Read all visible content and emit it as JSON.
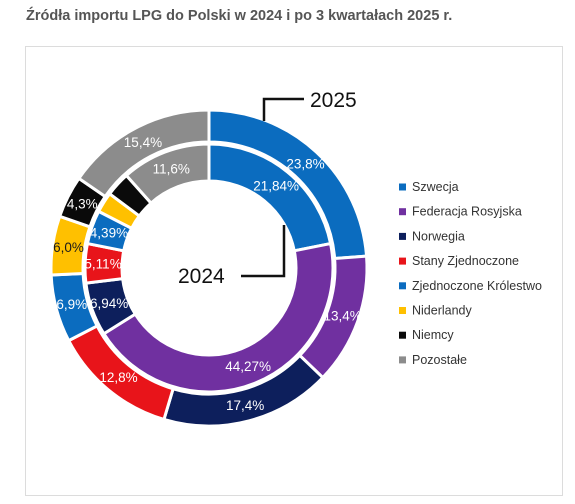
{
  "title": "Źródła importu LPG do Polski w 2024 i po 3 kwartałach 2025 r.",
  "chart_data": {
    "type": "pie",
    "subtype": "double-donut",
    "legend_position": "right",
    "categories": [
      "Szwecja",
      "Federacja Rosyjska",
      "Norwegia",
      "Stany Zjednoczone",
      "Zjednoczone Królestwo",
      "Niderlandy",
      "Niemcy",
      "Pozostałe"
    ],
    "colors": [
      "#0b6cbf",
      "#7030a0",
      "#0d1f5c",
      "#e8141a",
      "#0b6cbf",
      "#ffc000",
      "#0a0a0a",
      "#8c8c8c"
    ],
    "series": [
      {
        "name": "2025",
        "ring": "outer",
        "values": [
          23.8,
          13.4,
          17.4,
          12.8,
          6.9,
          6.0,
          4.3,
          15.4
        ],
        "labels": [
          "23,8%",
          "13,4%",
          "17,4%",
          "12,8%",
          "6,9%",
          "6,0%",
          "4,3%",
          "15,4%"
        ]
      },
      {
        "name": "2024",
        "ring": "inner",
        "values": [
          21.84,
          44.27,
          6.94,
          5.11,
          4.39,
          2.66,
          3.19,
          11.6
        ],
        "labels": [
          "21,84%",
          "44,27%",
          "6,94%",
          "5,11%",
          "4,39%",
          "",
          "",
          "11,6%"
        ]
      }
    ]
  }
}
